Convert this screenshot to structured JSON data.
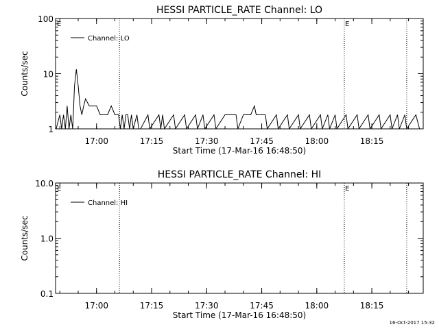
{
  "chart_data": [
    {
      "type": "line",
      "title": "HESSI PARTICLE_RATE Channel: LO",
      "xlabel": "Start Time (17-Mar-16 16:48:50)",
      "ylabel": "Counts/sec",
      "yscale": "log",
      "ylim": [
        1,
        100
      ],
      "yticks": [
        1,
        10,
        100
      ],
      "ytick_labels": [
        "1",
        "10",
        "100"
      ],
      "xlim": [
        "16:48:50",
        "18:29:00"
      ],
      "xticks": [
        "17:00",
        "17:15",
        "17:30",
        "17:45",
        "18:00",
        "18:15"
      ],
      "legend": "top-left",
      "series": [
        {
          "name": "Channel: LO",
          "x": [
            "16:49:00",
            "16:50:00",
            "16:50:30",
            "16:51:00",
            "16:51:30",
            "16:52:00",
            "16:52:30",
            "16:53:00",
            "16:53:30",
            "16:54:00",
            "16:54:30",
            "16:55:00",
            "16:55:30",
            "16:56:00",
            "16:56:30",
            "16:57:00",
            "16:58:00",
            "16:59:00",
            "17:00:00",
            "17:01:00",
            "17:02:00",
            "17:03:00",
            "17:04:00",
            "17:05:00",
            "17:06:00",
            "17:06:30",
            "17:07:00",
            "17:07:30",
            "17:08:00",
            "17:08:30",
            "17:09:00",
            "17:09:30",
            "17:10:00",
            "17:11:00",
            "17:11:30",
            "17:12:00",
            "17:14:00",
            "17:14:30",
            "17:17:00",
            "17:17:30",
            "17:18:00",
            "17:18:30",
            "17:21:00",
            "17:21:30",
            "17:24:00",
            "17:24:30",
            "17:27:00",
            "17:27:30",
            "17:29:00",
            "17:29:30",
            "17:32:00",
            "17:32:30",
            "17:35:00",
            "17:36:00",
            "17:38:00",
            "17:38:30",
            "17:40:00",
            "17:42:00",
            "17:43:00",
            "17:43:30",
            "17:44:00",
            "17:46:00",
            "17:46:30",
            "17:49:00",
            "17:49:30",
            "17:52:00",
            "17:52:30",
            "17:55:00",
            "17:55:30",
            "17:58:00",
            "17:58:30",
            "18:01:00",
            "18:01:30",
            "18:03:00",
            "18:03:30",
            "18:05:00",
            "18:05:30",
            "18:08:00",
            "18:08:30",
            "18:11:00",
            "18:11:30",
            "18:14:00",
            "18:14:30",
            "18:17:00",
            "18:17:30",
            "18:20:00",
            "18:20:30",
            "18:22:00",
            "18:22:30",
            "18:24:00",
            "18:24:30",
            "18:27:00",
            "18:28:00"
          ],
          "y": [
            1,
            1.8,
            1,
            1.8,
            1,
            2.6,
            1,
            1.8,
            1,
            6,
            12,
            6,
            2.6,
            1.8,
            2.6,
            3.5,
            2.6,
            2.6,
            2.6,
            1.8,
            1.8,
            1.8,
            2.6,
            1.8,
            1.8,
            1,
            1.8,
            1,
            1.8,
            1.8,
            1,
            1.8,
            1,
            1.8,
            1,
            1,
            1.8,
            1,
            1.8,
            1,
            1.8,
            1,
            1.8,
            1,
            1.8,
            1,
            1.8,
            1,
            1.8,
            1,
            1.8,
            1,
            1.8,
            1.8,
            1.8,
            1,
            1.8,
            1.8,
            2.6,
            1.8,
            1.8,
            1.8,
            1,
            1.8,
            1,
            1.8,
            1,
            1.8,
            1,
            1.8,
            1,
            1.8,
            1,
            1.8,
            1,
            1.8,
            1,
            1.8,
            1,
            1.8,
            1,
            1.8,
            1,
            1.8,
            1,
            1.8,
            1,
            1.8,
            1,
            1.8,
            1,
            1.8,
            1
          ]
        }
      ],
      "markers": [
        {
          "time": "17:06:15",
          "label": ""
        },
        {
          "time": "18:07:30",
          "label": "E"
        },
        {
          "time": "18:24:30",
          "label": ""
        }
      ],
      "corner_label": "E"
    },
    {
      "type": "line",
      "title": "HESSI PARTICLE_RATE Channel: HI",
      "xlabel": "Start Time (17-Mar-16 16:48:50)",
      "ylabel": "Counts/sec",
      "yscale": "log",
      "ylim": [
        0.1,
        10
      ],
      "yticks": [
        0.1,
        1,
        10
      ],
      "ytick_labels": [
        "0.1",
        "1.0",
        "10.0"
      ],
      "xlim": [
        "16:48:50",
        "18:29:00"
      ],
      "xticks": [
        "17:00",
        "17:15",
        "17:30",
        "17:45",
        "18:00",
        "18:15"
      ],
      "legend": "top-left",
      "series": [
        {
          "name": "Channel: HI",
          "x": [],
          "y": []
        }
      ],
      "markers": [
        {
          "time": "17:06:15",
          "label": ""
        },
        {
          "time": "18:07:30",
          "label": "E"
        },
        {
          "time": "18:24:30",
          "label": ""
        }
      ],
      "corner_label": "E"
    }
  ],
  "footer": {
    "timestamp": "16-Oct-2017 15:32"
  }
}
